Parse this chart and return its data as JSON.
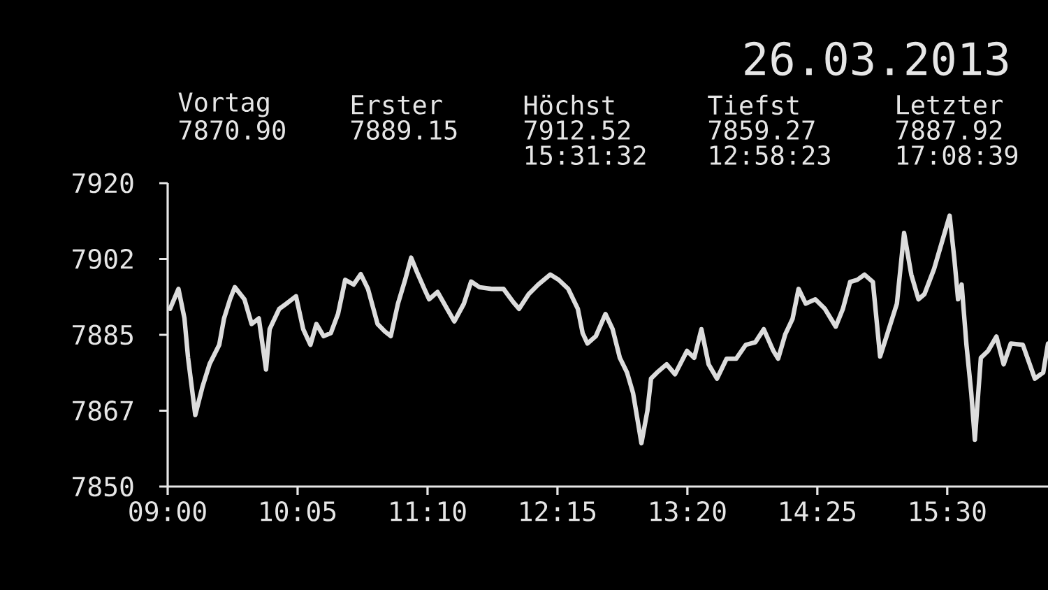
{
  "chart_data": {
    "type": "line",
    "title": "26.03.2013",
    "annotations": [
      "Vortag",
      "7870.90",
      "Erster",
      "7889.15",
      "Höchst",
      "7912.52",
      "15:31:32",
      "Tiefst",
      "7859.27",
      "12:58:23",
      "Letzter",
      "7887.92",
      "17:08:39"
    ],
    "x": [
      9.02,
      9.09,
      9.14,
      9.17,
      9.23,
      9.29,
      9.35,
      9.43,
      9.47,
      9.52,
      9.56,
      9.64,
      9.7,
      9.76,
      9.82,
      9.85,
      9.93,
      9.99,
      10.07,
      10.13,
      10.19,
      10.24,
      10.3,
      10.36,
      10.42,
      10.48,
      10.55,
      10.61,
      10.67,
      10.75,
      10.81,
      10.86,
      10.92,
      10.98,
      11.03,
      11.08,
      11.14,
      11.18,
      11.25,
      11.33,
      11.39,
      11.47,
      11.53,
      11.6,
      11.7,
      11.8,
      11.88,
      11.93,
      12.01,
      12.09,
      12.19,
      12.26,
      12.34,
      12.42,
      12.46,
      12.5,
      12.57,
      12.65,
      12.71,
      12.77,
      12.83,
      12.88,
      12.95,
      13.0,
      13.03,
      13.08,
      13.16,
      13.23,
      13.33,
      13.39,
      13.45,
      13.51,
      13.58,
      13.66,
      13.74,
      13.82,
      13.9,
      13.97,
      14.05,
      14.09,
      14.15,
      14.21,
      14.26,
      14.32,
      14.4,
      14.48,
      14.57,
      14.63,
      14.69,
      14.75,
      14.81,
      14.88,
      14.94,
      15.0,
      15.08,
      15.14,
      15.2,
      15.26,
      15.31,
      15.39,
      15.52,
      15.56,
      15.59,
      15.62,
      15.66,
      15.7,
      15.73,
      15.78,
      15.84,
      15.91,
      15.97,
      16.03,
      16.13,
      16.23,
      16.3,
      16.34
    ],
    "series": [
      {
        "color": "#dcdcdc",
        "values": [
          7891,
          7895.6,
          7888.8,
          7879.7,
          7866.5,
          7873,
          7878.3,
          7882.7,
          7888.8,
          7893.2,
          7896,
          7893.2,
          7887.5,
          7888.8,
          7877,
          7886.3,
          7891,
          7892.2,
          7893.9,
          7886.3,
          7882.7,
          7887.5,
          7884.7,
          7885.4,
          7889.8,
          7897.7,
          7896.6,
          7899,
          7895.6,
          7887.5,
          7885.8,
          7884.7,
          7892.2,
          7897.7,
          7902.8,
          7899.4,
          7895.6,
          7893.2,
          7894.9,
          7891,
          7888.1,
          7892.2,
          7897.3,
          7896,
          7895.6,
          7895.6,
          7892.6,
          7891,
          7894.4,
          7896.6,
          7898.9,
          7897.7,
          7895.6,
          7891,
          7885.4,
          7883,
          7884.7,
          7889.8,
          7886.3,
          7879.7,
          7876.3,
          7871.6,
          7860,
          7867.5,
          7874.9,
          7876.3,
          7878.2,
          7875.9,
          7881.3,
          7879.7,
          7886.3,
          7878.2,
          7874.9,
          7879.5,
          7879.5,
          7882.7,
          7883.3,
          7886.3,
          7881.3,
          7879.5,
          7885.2,
          7888.7,
          7895.6,
          7892.2,
          7893.2,
          7891,
          7886.9,
          7891,
          7897.2,
          7897.7,
          7898.9,
          7897.2,
          7880,
          7885.2,
          7892.2,
          7908.5,
          7898.9,
          7893.2,
          7894.4,
          7900.2,
          7912.5,
          7902.3,
          7893.2,
          7896.6,
          7882.7,
          7871.6,
          7860.8,
          7879.7,
          7881.3,
          7884.6,
          7878.2,
          7883,
          7882.7,
          7874.9,
          7876.3,
          7883
        ]
      }
    ],
    "xlim": [
      9,
      16.34
    ],
    "ylim": [
      7850,
      7920
    ],
    "xticks": [
      {
        "value": 9,
        "label": "09:00"
      },
      {
        "value": 10.0833,
        "label": "10:05"
      },
      {
        "value": 11.1667,
        "label": "11:10"
      },
      {
        "value": 12.25,
        "label": "12:15"
      },
      {
        "value": 13.3333,
        "label": "13:20"
      },
      {
        "value": 14.4167,
        "label": "14:25"
      },
      {
        "value": 15.5,
        "label": "15:30"
      }
    ],
    "yticks": [
      7850,
      {
        "value": 7867.5,
        "label": "7867"
      },
      7885,
      {
        "value": 7902.5,
        "label": "7902"
      },
      7920
    ],
    "marker": "none",
    "line_style": "solid"
  }
}
